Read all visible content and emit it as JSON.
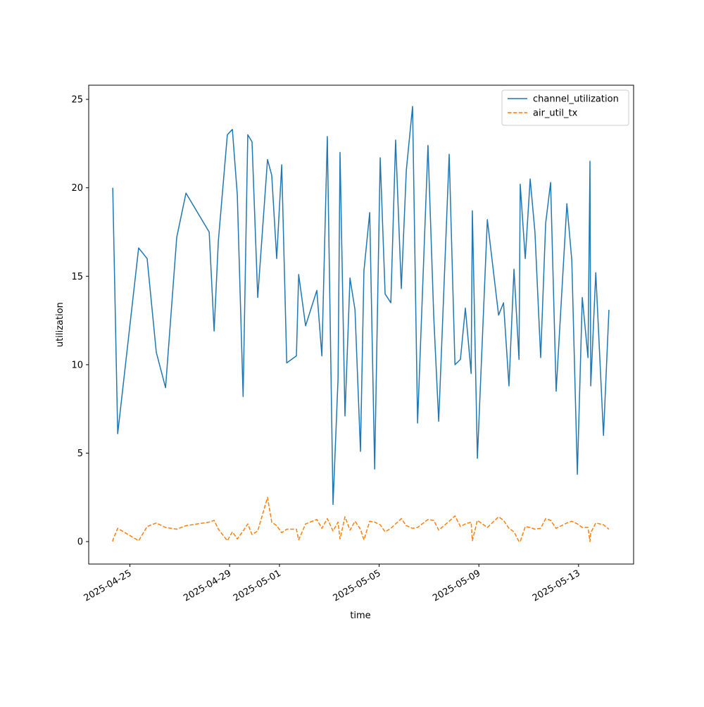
{
  "chart_data": {
    "type": "line",
    "xlabel": "time",
    "ylabel": "utilization",
    "x": [
      "2025-04-24T07:30",
      "2025-04-24T07:40",
      "2025-04-24T12:15",
      "2025-04-25T08:25",
      "2025-04-25T16:35",
      "2025-04-26T01:25",
      "2025-04-26T10:20",
      "2025-04-26T21:05",
      "2025-04-27T06:00",
      "2025-04-28T04:20",
      "2025-04-28T09:05",
      "2025-04-28T13:10",
      "2025-04-28T21:50",
      "2025-04-29T02:40",
      "2025-04-29T07:25",
      "2025-04-29T13:00",
      "2025-04-29T17:30",
      "2025-04-29T21:35",
      "2025-04-30T03:05",
      "2025-04-30T12:30",
      "2025-04-30T16:35",
      "2025-04-30T21:20",
      "2025-05-01T02:10",
      "2025-05-01T07:00",
      "2025-05-01T16:20",
      "2025-05-01T18:30",
      "2025-05-02T01:10",
      "2025-05-02T12:00",
      "2025-05-02T16:50",
      "2025-05-02T22:05",
      "2025-05-03T03:35",
      "2025-05-03T08:25",
      "2025-05-03T10:20",
      "2025-05-03T15:05",
      "2025-05-03T19:55",
      "2025-05-04T00:45",
      "2025-05-04T06:00",
      "2025-05-04T09:20",
      "2025-05-04T14:55",
      "2025-05-04T19:40",
      "2025-05-05T01:00",
      "2025-05-05T05:45",
      "2025-05-05T11:15",
      "2025-05-05T15:50",
      "2025-05-05T21:20",
      "2025-05-06T02:10",
      "2025-05-06T08:10",
      "2025-05-06T13:00",
      "2025-05-06T23:00",
      "2025-05-07T04:35",
      "2025-05-07T09:20",
      "2025-05-07T19:25",
      "2025-05-08T01:00",
      "2025-05-08T06:15",
      "2025-05-08T11:00",
      "2025-05-08T16:35",
      "2025-05-08T17:45",
      "2025-05-08T22:35",
      "2025-05-09T08:10",
      "2025-05-09T19:00",
      "2025-05-09T23:45",
      "2025-05-10T05:00",
      "2025-05-10T09:50",
      "2025-05-10T14:40",
      "2025-05-10T15:50",
      "2025-05-10T20:40",
      "2025-05-11T01:25",
      "2025-05-11T06:00",
      "2025-05-11T11:30",
      "2025-05-11T16:20",
      "2025-05-11T21:05",
      "2025-05-12T02:25",
      "2025-05-12T12:45",
      "2025-05-12T17:30",
      "2025-05-12T22:50",
      "2025-05-13T03:35",
      "2025-05-13T09:05",
      "2025-05-13T11:00",
      "2025-05-13T11:45",
      "2025-05-13T16:35",
      "2025-05-14T00:00",
      "2025-05-14T05:15"
    ],
    "series": [
      {
        "name": "channel_utilization",
        "color": "#1f77b4",
        "dash": false,
        "values": [
          20.0,
          19.5,
          6.1,
          16.6,
          16.0,
          10.7,
          8.7,
          17.2,
          19.7,
          17.5,
          11.9,
          17.0,
          23.0,
          23.3,
          19.6,
          8.2,
          23.0,
          22.6,
          13.8,
          21.6,
          20.7,
          16.0,
          21.3,
          10.1,
          10.5,
          15.1,
          12.2,
          14.2,
          10.5,
          22.9,
          2.1,
          9.2,
          22.0,
          7.1,
          14.9,
          13.1,
          5.1,
          15.3,
          18.6,
          4.1,
          21.7,
          14.0,
          13.5,
          22.7,
          14.3,
          21.0,
          24.6,
          6.7,
          22.4,
          12.7,
          6.8,
          21.9,
          10.0,
          10.3,
          13.2,
          9.5,
          18.7,
          4.7,
          18.2,
          12.8,
          13.5,
          8.8,
          15.4,
          10.3,
          20.2,
          16.0,
          20.5,
          17.5,
          10.4,
          18.0,
          20.3,
          8.5,
          19.1,
          15.9,
          3.8,
          13.8,
          10.4,
          21.5,
          8.8,
          15.2,
          6.0,
          13.1
        ]
      },
      {
        "name": "air_util_tx",
        "color": "#ff7f0e",
        "dash": true,
        "values": [
          0.0,
          0.1,
          0.75,
          0.05,
          0.85,
          1.05,
          0.8,
          0.7,
          0.9,
          1.1,
          1.2,
          0.7,
          0.05,
          0.55,
          0.15,
          0.6,
          1.0,
          0.4,
          0.6,
          2.5,
          1.1,
          0.9,
          0.5,
          0.7,
          0.7,
          0.1,
          1.0,
          1.25,
          0.75,
          1.3,
          0.6,
          1.1,
          0.15,
          1.4,
          0.65,
          1.15,
          0.7,
          0.1,
          1.15,
          1.1,
          0.95,
          0.55,
          0.75,
          1.0,
          1.3,
          0.9,
          0.75,
          0.8,
          1.25,
          1.2,
          0.65,
          1.15,
          1.45,
          0.85,
          1.0,
          1.1,
          0.05,
          1.2,
          0.8,
          1.4,
          1.2,
          0.75,
          0.55,
          0.0,
          0.0,
          0.85,
          0.8,
          0.7,
          0.75,
          1.3,
          1.2,
          0.75,
          1.05,
          1.15,
          1.0,
          0.8,
          0.8,
          0.0,
          0.5,
          1.05,
          0.95,
          0.7
        ]
      }
    ],
    "xlim": [
      "2025-04-23T08:20",
      "2025-05-15T05:00"
    ],
    "xticks": [
      "2025-04-25",
      "2025-04-29",
      "2025-05-01",
      "2025-05-05",
      "2025-05-09",
      "2025-05-13"
    ],
    "ylim": [
      -1.27,
      25.8
    ],
    "yticks": [
      0,
      5,
      10,
      15,
      20,
      25
    ],
    "grid": false,
    "legend": "upper right"
  }
}
